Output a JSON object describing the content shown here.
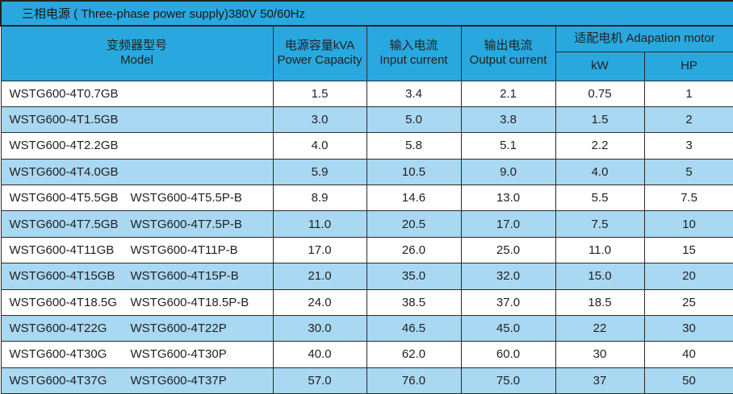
{
  "title": "三相电源 ( Three-phase power supply)380V 50/60Hz",
  "columns": {
    "model": {
      "zh": "变频器型号",
      "en": "Model"
    },
    "power_capacity": {
      "zh": "电源容量kVA",
      "en": "Power Capacity"
    },
    "input_current": {
      "zh": "输入电流",
      "en": "Input current"
    },
    "output_current": {
      "zh": "输出电流",
      "en": "Output current"
    },
    "adaptation_motor": {
      "label": "适配电机  Adapation motor",
      "kw": "kW",
      "hp": "HP"
    }
  },
  "rows": [
    {
      "model1": "WSTG600-4T0.7GB",
      "model2": "",
      "kva": "1.5",
      "input": "3.4",
      "output": "2.1",
      "kw": "0.75",
      "hp": "1"
    },
    {
      "model1": "WSTG600-4T1.5GB",
      "model2": "",
      "kva": "3.0",
      "input": "5.0",
      "output": "3.8",
      "kw": "1.5",
      "hp": "2"
    },
    {
      "model1": "WSTG600-4T2.2GB",
      "model2": "",
      "kva": "4.0",
      "input": "5.8",
      "output": "5.1",
      "kw": "2.2",
      "hp": "3"
    },
    {
      "model1": "WSTG600-4T4.0GB",
      "model2": "",
      "kva": "5.9",
      "input": "10.5",
      "output": "9.0",
      "kw": "4.0",
      "hp": "5"
    },
    {
      "model1": "WSTG600-4T5.5GB",
      "model2": "WSTG600-4T5.5P-B",
      "kva": "8.9",
      "input": "14.6",
      "output": "13.0",
      "kw": "5.5",
      "hp": "7.5"
    },
    {
      "model1": "WSTG600-4T7.5GB",
      "model2": "WSTG600-4T7.5P-B",
      "kva": "11.0",
      "input": "20.5",
      "output": "17.0",
      "kw": "7.5",
      "hp": "10"
    },
    {
      "model1": "WSTG600-4T11GB",
      "model2": "WSTG600-4T11P-B",
      "kva": "17.0",
      "input": "26.0",
      "output": "25.0",
      "kw": "11.0",
      "hp": "15"
    },
    {
      "model1": "WSTG600-4T15GB",
      "model2": "WSTG600-4T15P-B",
      "kva": "21.0",
      "input": "35.0",
      "output": "32.0",
      "kw": "15.0",
      "hp": "20"
    },
    {
      "model1": "WSTG600-4T18.5G",
      "model2": "WSTG600-4T18.5P-B",
      "kva": "24.0",
      "input": "38.5",
      "output": "37.0",
      "kw": "18.5",
      "hp": "25"
    },
    {
      "model1": "WSTG600-4T22G",
      "model2": "WSTG600-4T22P",
      "kva": "30.0",
      "input": "46.5",
      "output": "45.0",
      "kw": "22",
      "hp": "30"
    },
    {
      "model1": "WSTG600-4T30G",
      "model2": "WSTG600-4T30P",
      "kva": "40.0",
      "input": "62.0",
      "output": "60.0",
      "kw": "30",
      "hp": "40"
    },
    {
      "model1": "WSTG600-4T37G",
      "model2": "WSTG600-4T37P",
      "kva": "57.0",
      "input": "76.0",
      "output": "75.0",
      "kw": "37",
      "hp": "50"
    }
  ],
  "colors": {
    "header_bg": "#29a8df",
    "row_bg": "#ffffff",
    "row_alt_bg": "#a9d8f2",
    "border": "#2b2b2b",
    "text": "#222222"
  }
}
